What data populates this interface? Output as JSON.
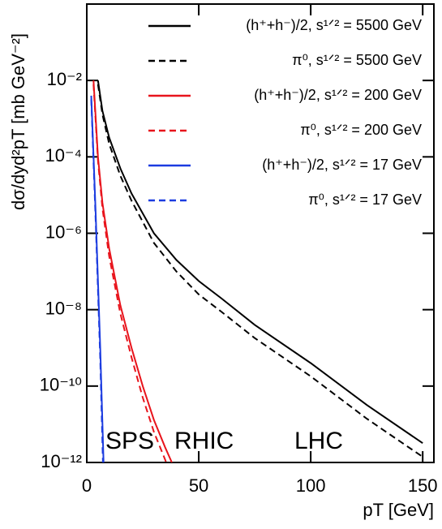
{
  "chart_data": {
    "type": "line",
    "xlabel": "pT [GeV]",
    "ylabel": "dσ/dyd²pT [mb GeV⁻²]",
    "log_y": true,
    "xlim": [
      0,
      155
    ],
    "xticks": [
      0,
      50,
      100,
      150
    ],
    "ylim": [
      1e-12,
      1
    ],
    "yticks": [
      {
        "value": 1e-12,
        "label": "10⁻¹²"
      },
      {
        "value": 1e-10,
        "label": "10⁻¹⁰"
      },
      {
        "value": 1e-08,
        "label": "10⁻⁸"
      },
      {
        "value": 1e-06,
        "label": "10⁻⁶"
      },
      {
        "value": 0.0001,
        "label": "10⁻⁴"
      },
      {
        "value": 0.01,
        "label": "10⁻²"
      }
    ],
    "series": [
      {
        "name": "(h⁺+h⁻)/2, s¹ᐟ² = 5500 GeV",
        "color": "#000000",
        "dashed": false,
        "x": [
          5,
          7,
          10,
          15,
          20,
          30,
          40,
          50,
          60,
          75,
          100,
          125,
          150
        ],
        "values": [
          0.01,
          0.0016,
          0.00032,
          5e-05,
          1.1e-05,
          1e-06,
          2e-07,
          5.6e-08,
          2e-08,
          4e-09,
          4e-10,
          3.2e-11,
          3.2e-12
        ]
      },
      {
        "name": "π⁰, s¹ᐟ² = 5500 GeV",
        "color": "#000000",
        "dashed": true,
        "x": [
          5,
          7,
          10,
          15,
          20,
          30,
          40,
          50,
          60,
          75,
          100,
          125,
          150
        ],
        "values": [
          0.0079,
          0.0013,
          0.00022,
          3.2e-05,
          7.1e-06,
          5.6e-07,
          1e-07,
          2.5e-08,
          8.9e-09,
          1.8e-09,
          1.8e-10,
          1.4e-11,
          1.4e-12
        ]
      },
      {
        "name": "(h⁺+h⁻)/2, s¹ᐟ² = 200 GeV",
        "color": "#e8141c",
        "dashed": false,
        "x": [
          3,
          5,
          7,
          10,
          15,
          20,
          25,
          30,
          35,
          38
        ],
        "values": [
          0.01,
          0.0001,
          6.3e-06,
          4e-07,
          1.3e-08,
          1e-09,
          1e-10,
          1.3e-11,
          2.5e-12,
          1e-12
        ]
      },
      {
        "name": "π⁰, s¹ᐟ² = 200 GeV",
        "color": "#e8141c",
        "dashed": true,
        "x": [
          3,
          5,
          7,
          10,
          15,
          20,
          25,
          30,
          35.5
        ],
        "values": [
          0.0079,
          7.9e-05,
          4.5e-06,
          2.5e-07,
          7.9e-09,
          5.6e-10,
          5e-11,
          6.3e-12,
          1e-12
        ]
      },
      {
        "name": "(h⁺+h⁻)/2, s¹ᐟ² = 17 GeV",
        "color": "#1c3ce0",
        "dashed": false,
        "x": [
          2,
          4,
          6,
          7.5
        ],
        "values": [
          0.004,
          3.2e-06,
          1e-09,
          1e-12
        ]
      },
      {
        "name": "π⁰, s¹ᐟ² = 17 GeV",
        "color": "#1c3ce0",
        "dashed": true,
        "x": [
          2,
          4,
          6,
          7.2
        ],
        "values": [
          0.0032,
          2e-06,
          5e-10,
          1e-12
        ]
      }
    ],
    "annotations": [
      {
        "text": "SPS",
        "color": "#1c3ce0"
      },
      {
        "text": "RHIC",
        "color": "#e8141c"
      },
      {
        "text": "LHC",
        "color": "#000000"
      }
    ]
  }
}
